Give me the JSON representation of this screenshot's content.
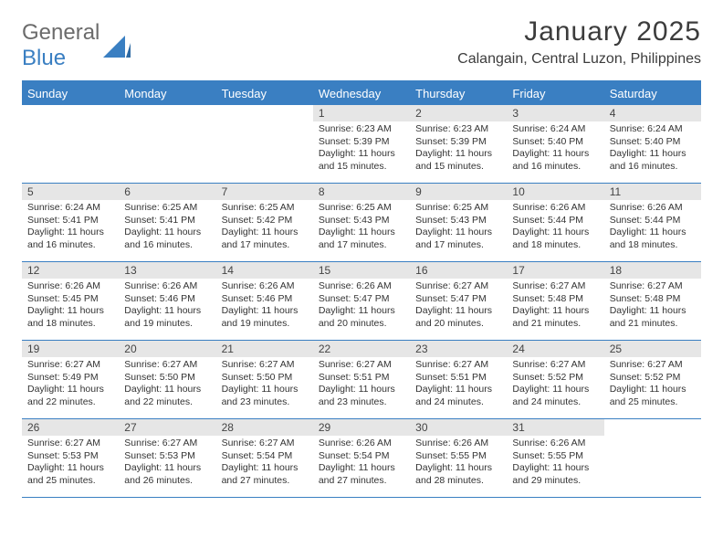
{
  "logo": {
    "general": "General",
    "blue": "Blue"
  },
  "title": "January 2025",
  "location": "Calangain, Central Luzon, Philippines",
  "colors": {
    "accent": "#3a7fc2",
    "grey_bar": "#e6e6e6",
    "text": "#333333",
    "logo_grey": "#6b6b6b",
    "background": "#ffffff"
  },
  "days_of_week": [
    "Sunday",
    "Monday",
    "Tuesday",
    "Wednesday",
    "Thursday",
    "Friday",
    "Saturday"
  ],
  "leading_blanks": 3,
  "days": [
    {
      "n": 1,
      "sunrise": "6:23 AM",
      "sunset": "5:39 PM",
      "dl_h": 11,
      "dl_m": 15
    },
    {
      "n": 2,
      "sunrise": "6:23 AM",
      "sunset": "5:39 PM",
      "dl_h": 11,
      "dl_m": 15
    },
    {
      "n": 3,
      "sunrise": "6:24 AM",
      "sunset": "5:40 PM",
      "dl_h": 11,
      "dl_m": 16
    },
    {
      "n": 4,
      "sunrise": "6:24 AM",
      "sunset": "5:40 PM",
      "dl_h": 11,
      "dl_m": 16
    },
    {
      "n": 5,
      "sunrise": "6:24 AM",
      "sunset": "5:41 PM",
      "dl_h": 11,
      "dl_m": 16
    },
    {
      "n": 6,
      "sunrise": "6:25 AM",
      "sunset": "5:41 PM",
      "dl_h": 11,
      "dl_m": 16
    },
    {
      "n": 7,
      "sunrise": "6:25 AM",
      "sunset": "5:42 PM",
      "dl_h": 11,
      "dl_m": 17
    },
    {
      "n": 8,
      "sunrise": "6:25 AM",
      "sunset": "5:43 PM",
      "dl_h": 11,
      "dl_m": 17
    },
    {
      "n": 9,
      "sunrise": "6:25 AM",
      "sunset": "5:43 PM",
      "dl_h": 11,
      "dl_m": 17
    },
    {
      "n": 10,
      "sunrise": "6:26 AM",
      "sunset": "5:44 PM",
      "dl_h": 11,
      "dl_m": 18
    },
    {
      "n": 11,
      "sunrise": "6:26 AM",
      "sunset": "5:44 PM",
      "dl_h": 11,
      "dl_m": 18
    },
    {
      "n": 12,
      "sunrise": "6:26 AM",
      "sunset": "5:45 PM",
      "dl_h": 11,
      "dl_m": 18
    },
    {
      "n": 13,
      "sunrise": "6:26 AM",
      "sunset": "5:46 PM",
      "dl_h": 11,
      "dl_m": 19
    },
    {
      "n": 14,
      "sunrise": "6:26 AM",
      "sunset": "5:46 PM",
      "dl_h": 11,
      "dl_m": 19
    },
    {
      "n": 15,
      "sunrise": "6:26 AM",
      "sunset": "5:47 PM",
      "dl_h": 11,
      "dl_m": 20
    },
    {
      "n": 16,
      "sunrise": "6:27 AM",
      "sunset": "5:47 PM",
      "dl_h": 11,
      "dl_m": 20
    },
    {
      "n": 17,
      "sunrise": "6:27 AM",
      "sunset": "5:48 PM",
      "dl_h": 11,
      "dl_m": 21
    },
    {
      "n": 18,
      "sunrise": "6:27 AM",
      "sunset": "5:48 PM",
      "dl_h": 11,
      "dl_m": 21
    },
    {
      "n": 19,
      "sunrise": "6:27 AM",
      "sunset": "5:49 PM",
      "dl_h": 11,
      "dl_m": 22
    },
    {
      "n": 20,
      "sunrise": "6:27 AM",
      "sunset": "5:50 PM",
      "dl_h": 11,
      "dl_m": 22
    },
    {
      "n": 21,
      "sunrise": "6:27 AM",
      "sunset": "5:50 PM",
      "dl_h": 11,
      "dl_m": 23
    },
    {
      "n": 22,
      "sunrise": "6:27 AM",
      "sunset": "5:51 PM",
      "dl_h": 11,
      "dl_m": 23
    },
    {
      "n": 23,
      "sunrise": "6:27 AM",
      "sunset": "5:51 PM",
      "dl_h": 11,
      "dl_m": 24
    },
    {
      "n": 24,
      "sunrise": "6:27 AM",
      "sunset": "5:52 PM",
      "dl_h": 11,
      "dl_m": 24
    },
    {
      "n": 25,
      "sunrise": "6:27 AM",
      "sunset": "5:52 PM",
      "dl_h": 11,
      "dl_m": 25
    },
    {
      "n": 26,
      "sunrise": "6:27 AM",
      "sunset": "5:53 PM",
      "dl_h": 11,
      "dl_m": 25
    },
    {
      "n": 27,
      "sunrise": "6:27 AM",
      "sunset": "5:53 PM",
      "dl_h": 11,
      "dl_m": 26
    },
    {
      "n": 28,
      "sunrise": "6:27 AM",
      "sunset": "5:54 PM",
      "dl_h": 11,
      "dl_m": 27
    },
    {
      "n": 29,
      "sunrise": "6:26 AM",
      "sunset": "5:54 PM",
      "dl_h": 11,
      "dl_m": 27
    },
    {
      "n": 30,
      "sunrise": "6:26 AM",
      "sunset": "5:55 PM",
      "dl_h": 11,
      "dl_m": 28
    },
    {
      "n": 31,
      "sunrise": "6:26 AM",
      "sunset": "5:55 PM",
      "dl_h": 11,
      "dl_m": 29
    }
  ],
  "labels": {
    "sunrise": "Sunrise:",
    "sunset": "Sunset:",
    "daylight_prefix": "Daylight:",
    "hours_word": "hours",
    "and_word": "and",
    "minutes_word": "minutes."
  }
}
